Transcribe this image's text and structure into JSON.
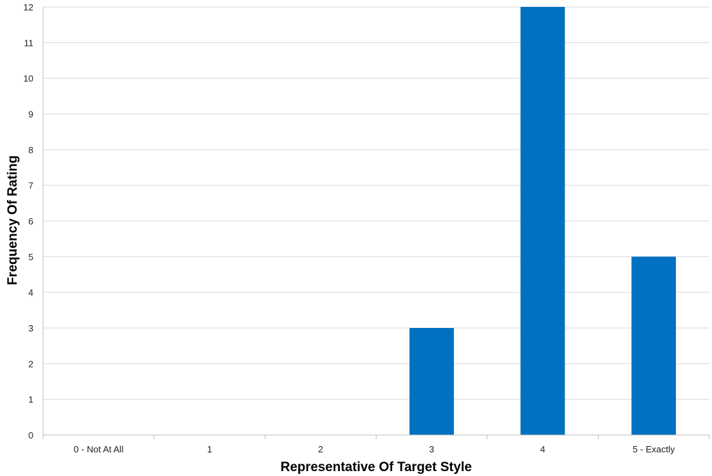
{
  "chart_data": {
    "type": "bar",
    "title": "",
    "xlabel": "Representative Of Target Style",
    "ylabel": "Frequency Of Rating",
    "categories": [
      "0 - Not At All",
      "1",
      "2",
      "3",
      "4",
      "5 - Exactly"
    ],
    "series": [
      {
        "values": [
          0,
          0,
          0,
          3,
          12,
          5
        ]
      }
    ],
    "ylim": [
      0,
      12
    ],
    "yticks": [
      0,
      1,
      2,
      3,
      4,
      5,
      6,
      7,
      8,
      9,
      10,
      11,
      12
    ],
    "grid": true,
    "legend": "none"
  },
  "colors": {
    "bar": "#0070c0",
    "grid": "#d9d9d9",
    "axis": "#bfbfbf",
    "text": "#222222"
  }
}
